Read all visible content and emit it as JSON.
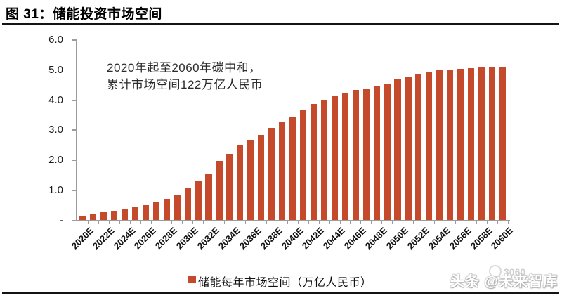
{
  "figure": {
    "title": "图 31：储能投资市场空间",
    "watermark_badge": "3060",
    "watermark_credit": "头条 @未来智库"
  },
  "chart_data": {
    "type": "bar",
    "title": "储能投资市场空间",
    "unit": "万亿人民币",
    "categories": [
      "2020E",
      "2021E",
      "2022E",
      "2023E",
      "2024E",
      "2025E",
      "2026E",
      "2027E",
      "2028E",
      "2029E",
      "2030E",
      "2031E",
      "2032E",
      "2033E",
      "2034E",
      "2035E",
      "2036E",
      "2037E",
      "2038E",
      "2039E",
      "2040E",
      "2041E",
      "2042E",
      "2043E",
      "2044E",
      "2045E",
      "2046E",
      "2047E",
      "2048E",
      "2049E",
      "2050E",
      "2051E",
      "2052E",
      "2053E",
      "2054E",
      "2055E",
      "2056E",
      "2057E",
      "2058E",
      "2059E",
      "2060E"
    ],
    "values": [
      0.15,
      0.22,
      0.25,
      0.31,
      0.35,
      0.42,
      0.48,
      0.58,
      0.69,
      0.85,
      1.06,
      1.31,
      1.54,
      1.96,
      2.19,
      2.49,
      2.66,
      2.82,
      3.05,
      3.26,
      3.44,
      3.67,
      3.86,
      4.0,
      4.11,
      4.23,
      4.32,
      4.37,
      4.44,
      4.5,
      4.66,
      4.76,
      4.83,
      4.9,
      4.97,
      5.0,
      5.03,
      5.05,
      5.07,
      5.07,
      5.06
    ],
    "x_tick_labels": [
      "2020E",
      "2022E",
      "2024E",
      "2026E",
      "2028E",
      "2030E",
      "2032E",
      "2034E",
      "2036E",
      "2038E",
      "2040E",
      "2042E",
      "2044E",
      "2046E",
      "2048E",
      "2050E",
      "2052E",
      "2054E",
      "2056E",
      "2058E",
      "2060E"
    ],
    "x_tick_step": 2,
    "y_tick_labels": [
      "6.0",
      "5.0",
      "4.0",
      "3.0",
      "2.0",
      "1.0",
      "-"
    ],
    "ylim": [
      0,
      6
    ],
    "grid": false,
    "annotation": [
      "2020年起至2060年碳中和，",
      "累计市场空间122万亿人民币"
    ],
    "cumulative_total": "122万亿人民币",
    "legend": [
      "储能每年市场空间（万亿人民币）"
    ],
    "legend_position": "bottom"
  },
  "colors": {
    "bar": "#C5492B",
    "axis": "#9C9C9C",
    "rule": "#141414",
    "watermark_gray": "#CFCFCF"
  }
}
